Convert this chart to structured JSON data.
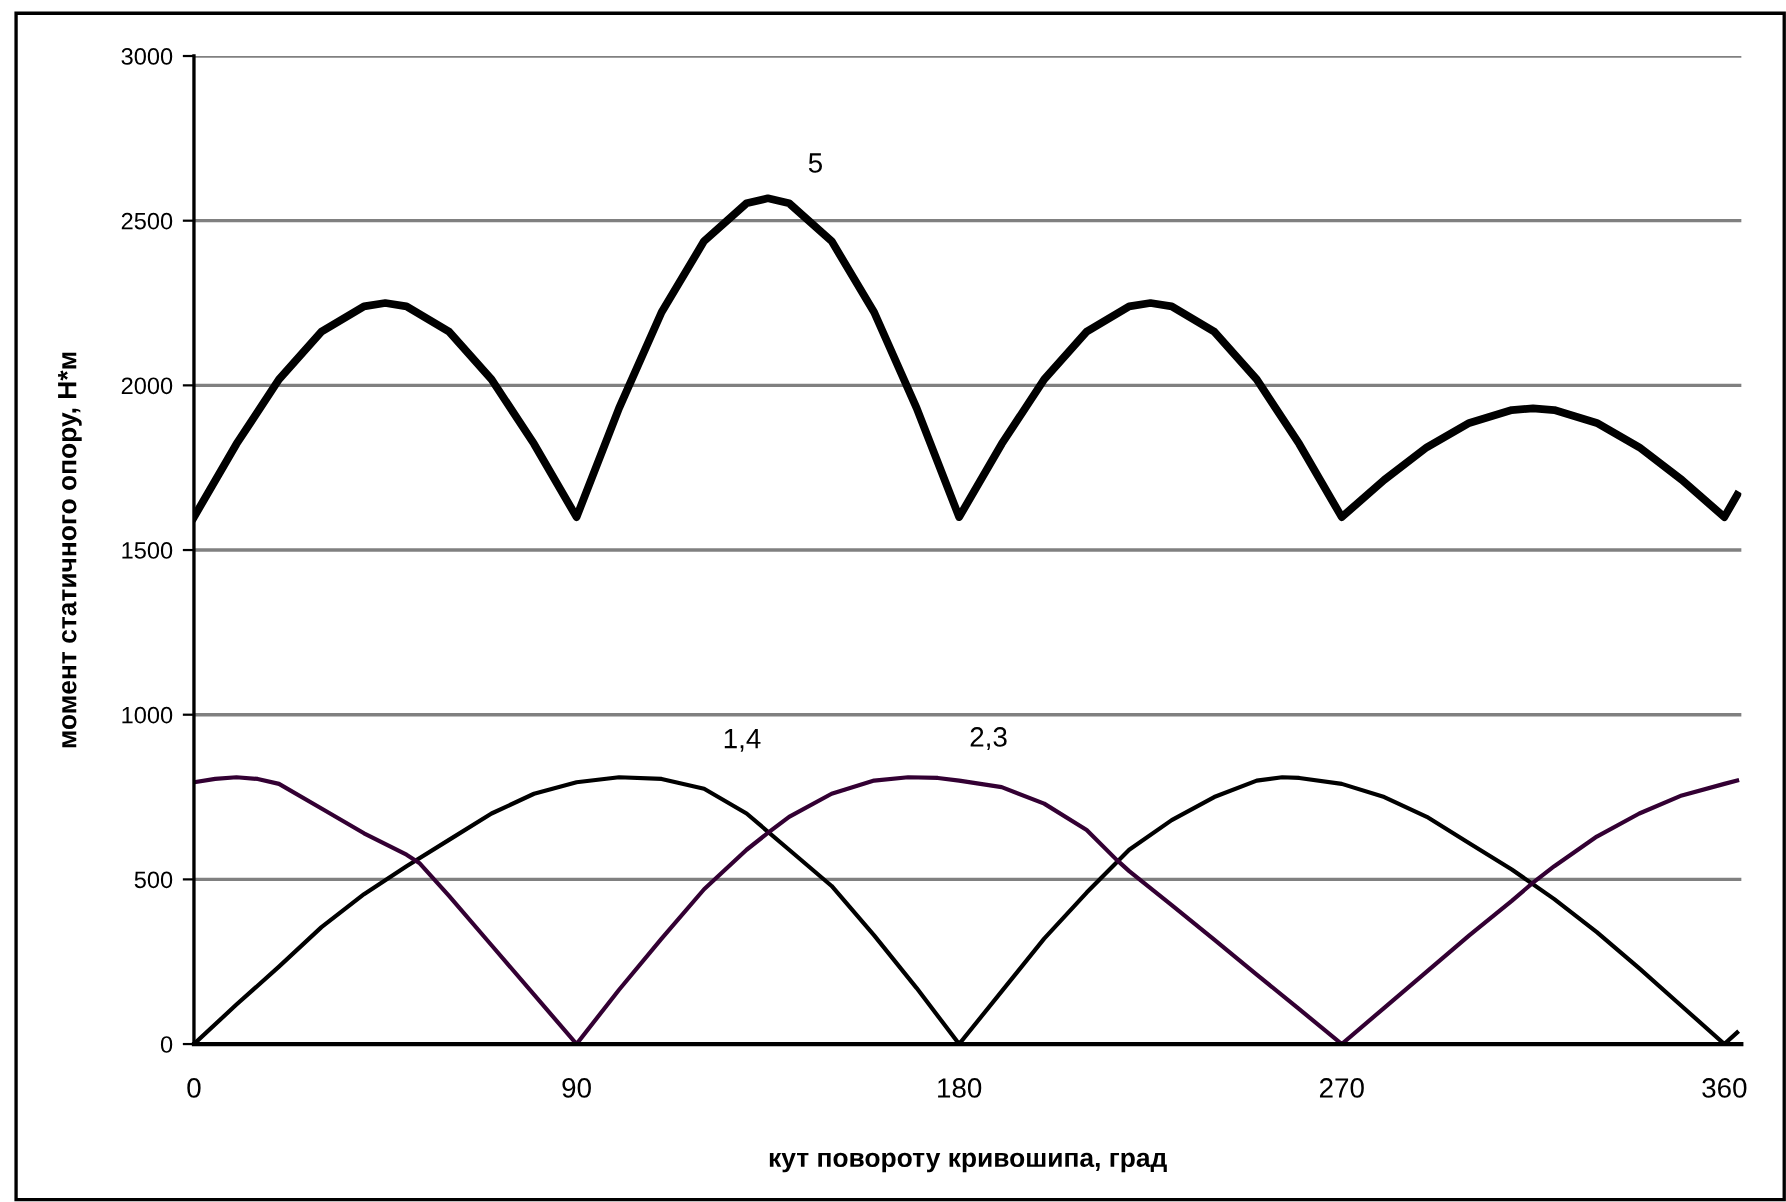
{
  "chart_data": {
    "type": "line",
    "xlabel": "кут повороту кривошипа, град",
    "ylabel": "момент статичного опору, Н*м",
    "xlim": [
      0,
      364
    ],
    "xticks": [
      0,
      90,
      180,
      270,
      360
    ],
    "ylim": [
      0,
      3000
    ],
    "yticks": [
      0,
      500,
      1000,
      1500,
      2000,
      2500,
      3000
    ],
    "grid": "y",
    "legend": false,
    "marker": "none",
    "line_style": "solid",
    "series": [
      {
        "name": "5",
        "color": "#000000",
        "x": [
          0,
          10,
          20,
          30,
          40,
          45,
          50,
          60,
          70,
          80,
          90,
          100,
          110,
          120,
          130,
          135,
          140,
          150,
          160,
          170,
          180,
          190,
          200,
          210,
          220,
          225,
          230,
          240,
          250,
          260,
          270,
          280,
          290,
          300,
          310,
          315,
          320,
          330,
          340,
          350,
          360,
          363
        ],
        "values": [
          1600,
          1822,
          2018,
          2163,
          2240,
          2250,
          2240,
          2163,
          2018,
          1822,
          1600,
          1931,
          2222,
          2438,
          2553,
          2568,
          2553,
          2438,
          2222,
          1931,
          1600,
          1822,
          2018,
          2163,
          2240,
          2250,
          2240,
          2163,
          2018,
          1822,
          1600,
          1713,
          1812,
          1886,
          1925,
          1930,
          1925,
          1886,
          1812,
          1713,
          1600,
          1667
        ]
      },
      {
        "name": "1,4",
        "color": "#000000",
        "x": [
          0,
          10,
          20,
          30,
          40,
          50,
          60,
          70,
          80,
          90,
          100,
          110,
          120,
          130,
          140,
          150,
          160,
          170,
          180,
          190,
          200,
          210,
          220,
          230,
          240,
          250,
          256,
          260,
          270,
          280,
          290,
          300,
          310,
          320,
          330,
          340,
          350,
          360,
          363
        ],
        "values": [
          0,
          120,
          235,
          355,
          455,
          540,
          620,
          700,
          760,
          795,
          810,
          805,
          775,
          700,
          590,
          480,
          330,
          170,
          0,
          160,
          320,
          460,
          590,
          680,
          750,
          800,
          810,
          808,
          790,
          750,
          690,
          610,
          530,
          440,
          340,
          230,
          115,
          0,
          35
        ]
      },
      {
        "name": "2,3",
        "color": "#330033",
        "x": [
          0,
          5,
          10,
          15,
          20,
          30,
          40,
          50,
          53,
          60,
          70,
          80,
          90,
          100,
          110,
          120,
          130,
          135,
          140,
          150,
          160,
          168,
          175,
          180,
          190,
          200,
          210,
          217,
          220,
          230,
          240,
          250,
          260,
          270,
          280,
          290,
          300,
          310,
          315,
          320,
          330,
          340,
          350,
          360,
          363
        ],
        "values": [
          795,
          805,
          810,
          805,
          790,
          715,
          640,
          575,
          550,
          450,
          300,
          150,
          0,
          165,
          320,
          470,
          590,
          641,
          690,
          760,
          800,
          810,
          808,
          800,
          780,
          730,
          650,
          560,
          525,
          422,
          317,
          211,
          106,
          0,
          110,
          220,
          330,
          435,
          490,
          540,
          630,
          700,
          755,
          790,
          800
        ]
      }
    ]
  }
}
